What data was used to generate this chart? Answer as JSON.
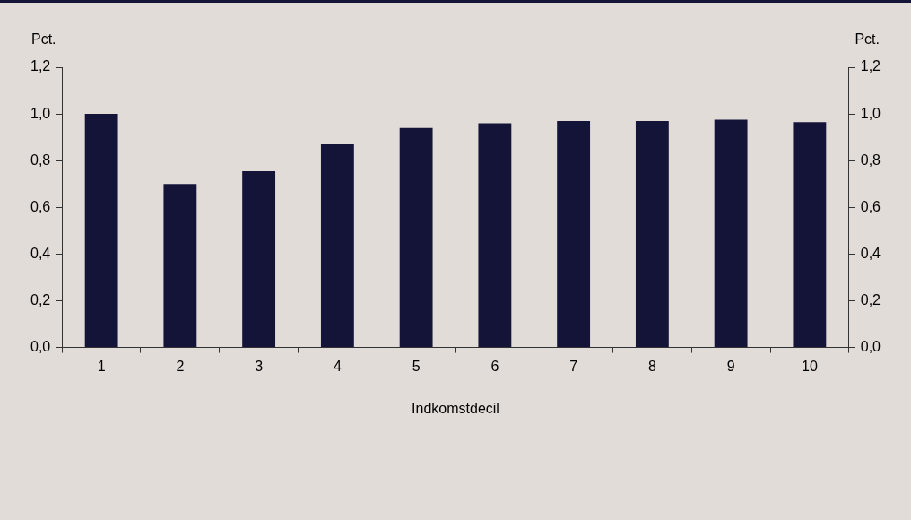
{
  "chart_data": {
    "type": "bar",
    "xlabel": "Indkomstdecil",
    "ylabel": "Pct.",
    "y2label": "Pct.",
    "categories": [
      "1",
      "2",
      "3",
      "4",
      "5",
      "6",
      "7",
      "8",
      "9",
      "10"
    ],
    "series": [
      {
        "color": "#141438",
        "values": [
          1.0,
          0.7,
          0.755,
          0.87,
          0.94,
          0.96,
          0.97,
          0.97,
          0.975,
          0.965
        ]
      }
    ],
    "ylim": [
      0,
      1.2
    ],
    "yticks": [
      {
        "value": 0,
        "label": "0,0"
      },
      {
        "value": 0.2,
        "label": "0,2"
      },
      {
        "value": 0.4,
        "label": "0,4"
      },
      {
        "value": 0.6,
        "label": "0,6"
      },
      {
        "value": 0.8,
        "label": "0,8"
      },
      {
        "value": 1.0,
        "label": "1,0"
      },
      {
        "value": 1.2,
        "label": "1,2"
      }
    ],
    "y2lim": [
      0,
      1.2
    ],
    "y2ticks": [
      {
        "value": 0,
        "label": "0,0"
      },
      {
        "value": 0.2,
        "label": "0,2"
      },
      {
        "value": 0.4,
        "label": "0,4"
      },
      {
        "value": 0.6,
        "label": "0,6"
      },
      {
        "value": 0.8,
        "label": "0,8"
      },
      {
        "value": 1.0,
        "label": "1,0"
      },
      {
        "value": 1.2,
        "label": "1,2"
      }
    ],
    "grid": false,
    "legend": false
  }
}
